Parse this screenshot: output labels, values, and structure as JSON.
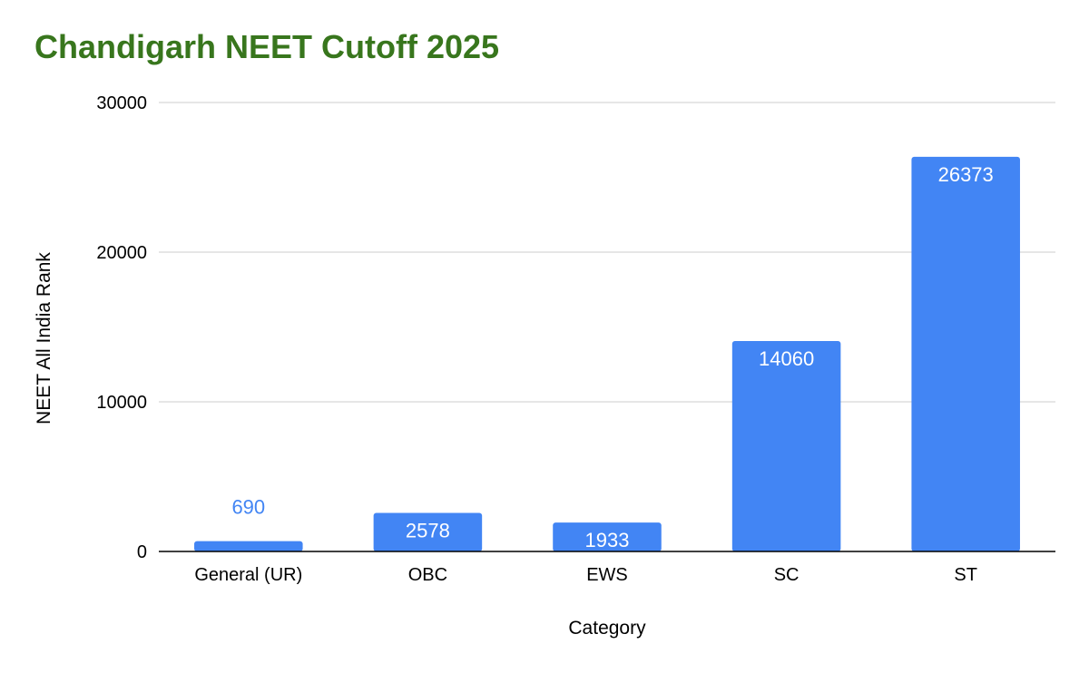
{
  "chart_data": {
    "type": "bar",
    "title": "Chandigarh NEET Cutoff 2025",
    "xlabel": "Category",
    "ylabel": "NEET All India Rank",
    "categories": [
      "General (UR)",
      "OBC",
      "EWS",
      "SC",
      "ST"
    ],
    "values": [
      690,
      2578,
      1933,
      14060,
      26373
    ],
    "data_labels": [
      "690",
      "2578",
      "1933",
      "14060",
      "26373"
    ],
    "ylim": [
      0,
      30000
    ],
    "yticks": [
      0,
      10000,
      20000,
      30000
    ],
    "ytick_labels": [
      "0",
      "10000",
      "20000",
      "30000"
    ],
    "grid": true,
    "legend": "none",
    "colors": {
      "bar": "#4285f4",
      "label_inside": "#ffffff",
      "label_outside": "#4285f4",
      "title": "#38761d",
      "grid": "#cccccc",
      "axis": "#000000",
      "text": "#000000"
    }
  }
}
